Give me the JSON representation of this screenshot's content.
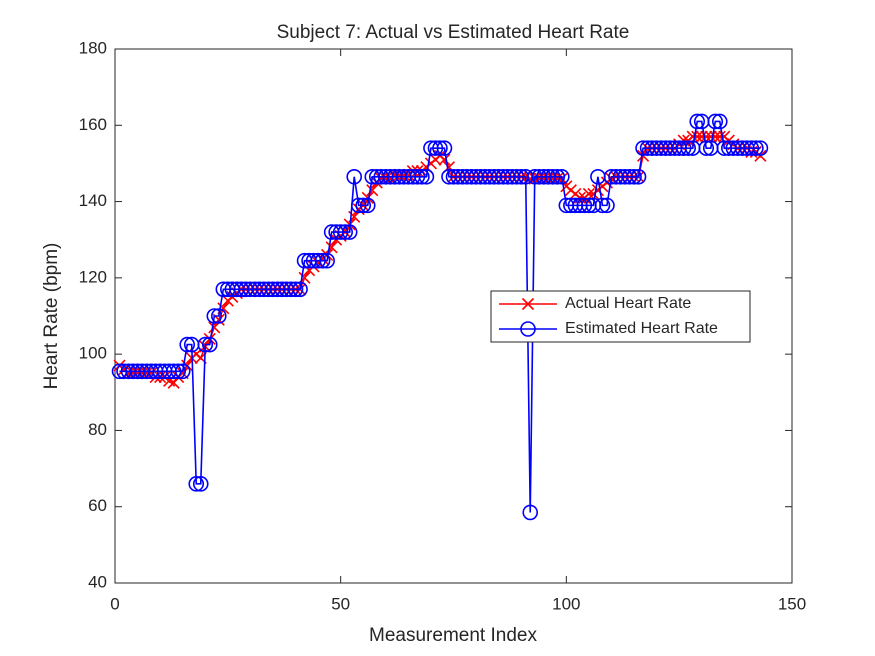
{
  "chart_data": {
    "type": "line",
    "title": "Subject 7: Actual vs Estimated Heart Rate",
    "x_label": "Measurement Index",
    "y_label": "Heart Rate (bpm)",
    "x": [
      1,
      2,
      3,
      4,
      5,
      6,
      7,
      8,
      9,
      10,
      11,
      12,
      13,
      14,
      15,
      16,
      17,
      18,
      19,
      20,
      21,
      22,
      23,
      24,
      25,
      26,
      27,
      28,
      29,
      30,
      31,
      32,
      33,
      34,
      35,
      36,
      37,
      38,
      39,
      40,
      41,
      42,
      43,
      44,
      45,
      46,
      47,
      48,
      49,
      50,
      51,
      52,
      53,
      54,
      55,
      56,
      57,
      58,
      59,
      60,
      61,
      62,
      63,
      64,
      65,
      66,
      67,
      68,
      69,
      70,
      71,
      72,
      73,
      74,
      75,
      76,
      77,
      78,
      79,
      80,
      81,
      82,
      83,
      84,
      85,
      86,
      87,
      88,
      89,
      90,
      91,
      92,
      93,
      94,
      95,
      96,
      97,
      98,
      99,
      100,
      101,
      102,
      103,
      104,
      105,
      106,
      107,
      108,
      109,
      110,
      111,
      112,
      113,
      114,
      115,
      116,
      117,
      118,
      119,
      120,
      121,
      122,
      123,
      124,
      125,
      126,
      127,
      128,
      129,
      130,
      131,
      132,
      133,
      134,
      135,
      136,
      137,
      138,
      139,
      140,
      141,
      142,
      143
    ],
    "series": [
      {
        "name": "Actual Heart Rate",
        "color": "#ff0000",
        "marker": "x",
        "values": [
          97,
          96,
          95,
          95,
          95,
          95,
          95,
          95,
          94,
          94,
          94,
          93,
          92.5,
          94,
          95,
          97,
          99,
          100,
          99,
          102,
          104,
          107,
          109,
          112,
          114,
          115,
          116,
          117,
          117,
          117,
          117,
          117,
          117,
          117,
          117,
          117,
          117,
          117,
          117,
          117,
          117,
          120,
          122,
          123,
          124,
          125,
          126,
          128,
          130,
          131,
          132,
          134,
          136,
          138,
          139,
          141,
          143,
          145,
          146,
          146,
          146,
          147,
          147,
          147,
          147,
          148,
          148,
          148,
          149,
          150,
          151,
          152,
          151,
          149,
          146.5,
          146.5,
          146.5,
          146.5,
          146.5,
          146.5,
          146.5,
          146.5,
          146.5,
          146.5,
          146.5,
          146.5,
          146.5,
          146.5,
          146.5,
          146.5,
          146.5,
          146,
          146,
          146,
          146,
          146,
          146,
          146,
          146,
          144,
          143,
          142,
          141,
          141,
          142,
          142,
          143,
          144,
          145,
          146,
          146.5,
          146.5,
          146.5,
          146.5,
          146.5,
          146.5,
          152,
          154,
          154,
          154,
          154,
          154,
          154,
          154,
          155,
          156,
          156,
          157,
          157,
          157,
          157,
          157,
          157,
          157,
          157,
          156,
          155,
          154,
          154,
          154,
          153,
          153,
          152
        ]
      },
      {
        "name": "Estimated Heart Rate",
        "color": "#0000ff",
        "marker": "o",
        "values": [
          95.5,
          95.5,
          95.5,
          95.5,
          95.5,
          95.5,
          95.5,
          95.5,
          95.5,
          95.5,
          95.5,
          95.5,
          95.5,
          95.5,
          95.5,
          102.5,
          102.5,
          66,
          66,
          102.5,
          102.5,
          110,
          110,
          117,
          117,
          117,
          117,
          117,
          117,
          117,
          117,
          117,
          117,
          117,
          117,
          117,
          117,
          117,
          117,
          117,
          117,
          124.5,
          124.5,
          124.5,
          124.5,
          124.5,
          124.5,
          132,
          132,
          132,
          132,
          132,
          146.5,
          139,
          139,
          139,
          146.5,
          146.5,
          146.5,
          146.5,
          146.5,
          146.5,
          146.5,
          146.5,
          146.5,
          146.5,
          146.5,
          146.5,
          146.5,
          154,
          154,
          154,
          154,
          146.5,
          146.5,
          146.5,
          146.5,
          146.5,
          146.5,
          146.5,
          146.5,
          146.5,
          146.5,
          146.5,
          146.5,
          146.5,
          146.5,
          146.5,
          146.5,
          146.5,
          146.5,
          58.5,
          146.5,
          146.5,
          146.5,
          146.5,
          146.5,
          146.5,
          146.5,
          139,
          139,
          139,
          139,
          139,
          139,
          139,
          146.5,
          139,
          139,
          146.5,
          146.5,
          146.5,
          146.5,
          146.5,
          146.5,
          146.5,
          154,
          154,
          154,
          154,
          154,
          154,
          154,
          154,
          154,
          154,
          154,
          154,
          161,
          161,
          154,
          154,
          161,
          161,
          154,
          154,
          154,
          154,
          154,
          154,
          154,
          154,
          154
        ]
      }
    ],
    "xlim": [
      0,
      150
    ],
    "xticks": [
      0,
      50,
      100,
      150
    ],
    "ylim": [
      40,
      180
    ],
    "yticks": [
      40,
      60,
      80,
      100,
      120,
      140,
      160,
      180
    ]
  }
}
